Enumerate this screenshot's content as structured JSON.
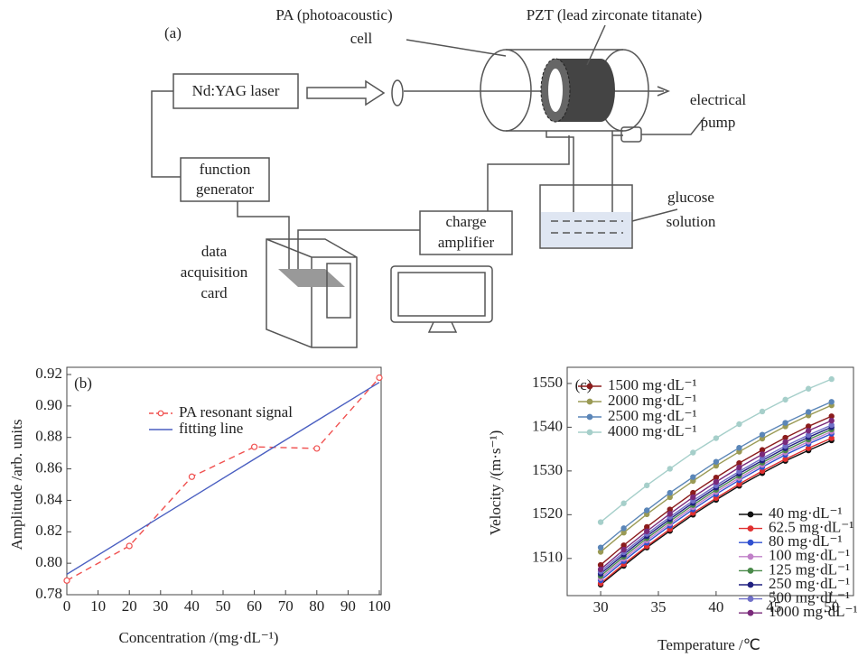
{
  "diagram": {
    "panel_label": "(a)",
    "laser": "Nd:YAG laser",
    "function_generator": [
      "function",
      "generator"
    ],
    "pa_cell": [
      "PA (photoacoustic)",
      "cell"
    ],
    "pzt": "PZT (lead zirconate titanate)",
    "electrical_pump": [
      "electrical",
      "pump"
    ],
    "glucose_solution": [
      "glucose",
      "solution"
    ],
    "charge_amplifier": [
      "charge",
      "amplifier"
    ],
    "data_acquisition_card": [
      "data",
      "acquisition",
      "card"
    ]
  },
  "chart_data": [
    {
      "type": "line",
      "panel_label": "(b)",
      "x_label": "Concentration /(mg·dL⁻¹)",
      "y_label": "Amplitude /arb. units",
      "x": [
        0,
        20,
        40,
        60,
        80,
        100
      ],
      "series": [
        {
          "name": "PA resonant signal",
          "color": "#f0504f",
          "line_style": "dashed",
          "marker": "open-circle",
          "values": [
            0.789,
            0.811,
            0.855,
            0.874,
            0.873,
            0.918
          ]
        },
        {
          "name": "fitting line",
          "color": "#4a5fc1",
          "line_style": "solid",
          "values": [
            0.793,
            0.8174,
            0.8418,
            0.8662,
            0.8906,
            0.915
          ]
        }
      ],
      "xlim": [
        0,
        100
      ],
      "xticks": [
        0,
        10,
        20,
        30,
        40,
        50,
        60,
        70,
        80,
        90,
        100
      ],
      "ylim": [
        0.78,
        0.92
      ],
      "yticks": [
        0.78,
        {
          "value": 0.8,
          "label": "0.80"
        },
        0.82,
        0.84,
        0.86,
        0.88,
        {
          "value": 0.9,
          "label": "0.90"
        },
        0.92
      ]
    },
    {
      "type": "line",
      "panel_label": "(c)",
      "x_label": "Temperature /℃",
      "y_label": "Velocity /(m·s⁻¹)",
      "x": [
        30,
        32,
        34,
        36,
        38,
        40,
        42,
        44,
        46,
        48,
        50
      ],
      "series": [
        {
          "name": "1500 mg·dL⁻¹",
          "color": "#8b1c1c",
          "marker": "circle",
          "values": [
            1508.5,
            1513.0,
            1517.2,
            1521.2,
            1525.0,
            1528.5,
            1531.8,
            1534.8,
            1537.6,
            1540.2,
            1542.5
          ]
        },
        {
          "name": "2000 mg·dL⁻¹",
          "color": "#9a9a55",
          "marker": "circle",
          "values": [
            1511.5,
            1515.9,
            1520.1,
            1524.0,
            1527.7,
            1531.2,
            1534.4,
            1537.4,
            1540.2,
            1542.7,
            1545.0
          ]
        },
        {
          "name": "2500 mg·dL⁻¹",
          "color": "#5b86b8",
          "marker": "circle",
          "values": [
            1512.5,
            1516.9,
            1521.0,
            1525.0,
            1528.6,
            1532.1,
            1535.3,
            1538.3,
            1541.0,
            1543.5,
            1545.8
          ]
        },
        {
          "name": "4000 mg·dL⁻¹",
          "color": "#a6cfca",
          "marker": "circle",
          "values": [
            1518.3,
            1522.6,
            1526.7,
            1530.5,
            1534.2,
            1537.5,
            1540.7,
            1543.6,
            1546.3,
            1548.8,
            1551.0
          ]
        },
        {
          "name": "40 mg·dL⁻¹",
          "color": "#111111",
          "marker": "circle",
          "values": [
            1504.0,
            1508.3,
            1512.5,
            1516.3,
            1520.0,
            1523.4,
            1526.6,
            1529.5,
            1532.3,
            1534.7,
            1537.0
          ]
        },
        {
          "name": "62.5 mg·dL⁻¹",
          "color": "#e03030",
          "marker": "circle",
          "values": [
            1504.3,
            1508.7,
            1512.8,
            1516.7,
            1520.4,
            1523.8,
            1527.0,
            1530.0,
            1532.7,
            1535.2,
            1537.5
          ]
        },
        {
          "name": "80 mg·dL⁻¹",
          "color": "#3050d0",
          "marker": "circle",
          "values": [
            1505.0,
            1509.4,
            1513.6,
            1517.5,
            1521.2,
            1524.7,
            1527.9,
            1530.9,
            1533.7,
            1536.2,
            1538.5
          ]
        },
        {
          "name": "100 mg·dL⁻¹",
          "color": "#c080c8",
          "marker": "circle",
          "values": [
            1505.5,
            1509.9,
            1514.1,
            1518.0,
            1521.7,
            1525.2,
            1528.4,
            1531.4,
            1534.2,
            1536.7,
            1539.0
          ]
        },
        {
          "name": "125 mg·dL⁻¹",
          "color": "#4a8a4a",
          "marker": "circle",
          "values": [
            1506.0,
            1510.4,
            1514.6,
            1518.5,
            1522.2,
            1525.7,
            1528.9,
            1531.9,
            1534.7,
            1537.2,
            1539.5
          ]
        },
        {
          "name": "250 mg·dL⁻¹",
          "color": "#202080",
          "marker": "circle",
          "values": [
            1506.5,
            1510.9,
            1515.1,
            1519.0,
            1522.7,
            1526.2,
            1529.4,
            1532.4,
            1535.2,
            1537.7,
            1540.0
          ]
        },
        {
          "name": "500 mg·dL⁻¹",
          "color": "#7070c8",
          "marker": "circle",
          "values": [
            1507.0,
            1511.4,
            1515.6,
            1519.5,
            1523.2,
            1526.7,
            1529.9,
            1532.9,
            1535.7,
            1538.2,
            1540.5
          ]
        },
        {
          "name": "1000 mg·dL⁻¹",
          "color": "#7a2a7a",
          "marker": "circle",
          "values": [
            1507.5,
            1512.0,
            1516.2,
            1520.2,
            1524.0,
            1527.5,
            1530.8,
            1533.8,
            1536.6,
            1539.2,
            1541.5
          ]
        }
      ],
      "xlim": [
        27.1,
        51.9
      ],
      "xticks": [
        30,
        35,
        40,
        45,
        50
      ],
      "ylim": [
        1501.5,
        1553.7
      ],
      "yticks": [
        1510,
        1520,
        1530,
        1540,
        1550
      ]
    }
  ]
}
